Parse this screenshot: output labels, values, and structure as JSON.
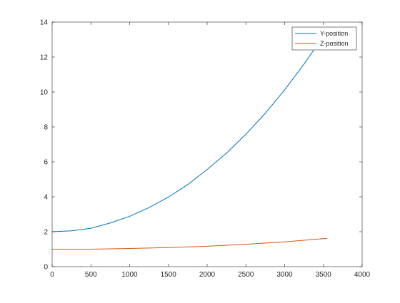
{
  "chart_data": {
    "type": "line",
    "title": "",
    "xlabel": "",
    "ylabel": "",
    "xlim": [
      0,
      4000
    ],
    "ylim": [
      0,
      14
    ],
    "xticks": [
      0,
      500,
      1000,
      1500,
      2000,
      2500,
      3000,
      3500,
      4000
    ],
    "yticks": [
      0,
      2,
      4,
      6,
      8,
      10,
      12,
      14
    ],
    "grid": false,
    "legend_position": "top-right",
    "series": [
      {
        "name": "Y-position",
        "color": "#0072bd",
        "x": [
          0,
          250,
          500,
          750,
          1000,
          1250,
          1500,
          1750,
          2000,
          2250,
          2500,
          2750,
          3000,
          3250,
          3500,
          3550
        ],
        "y": [
          2.0,
          2.05,
          2.2,
          2.5,
          2.88,
          3.38,
          3.98,
          4.7,
          5.56,
          6.5,
          7.58,
          8.78,
          10.12,
          11.6,
          13.2,
          13.45
        ]
      },
      {
        "name": "Z-position",
        "color": "#d95319",
        "x": [
          0,
          500,
          1000,
          1500,
          2000,
          2500,
          3000,
          3550
        ],
        "y": [
          1.0,
          1.0,
          1.04,
          1.09,
          1.17,
          1.28,
          1.42,
          1.62
        ]
      }
    ]
  }
}
